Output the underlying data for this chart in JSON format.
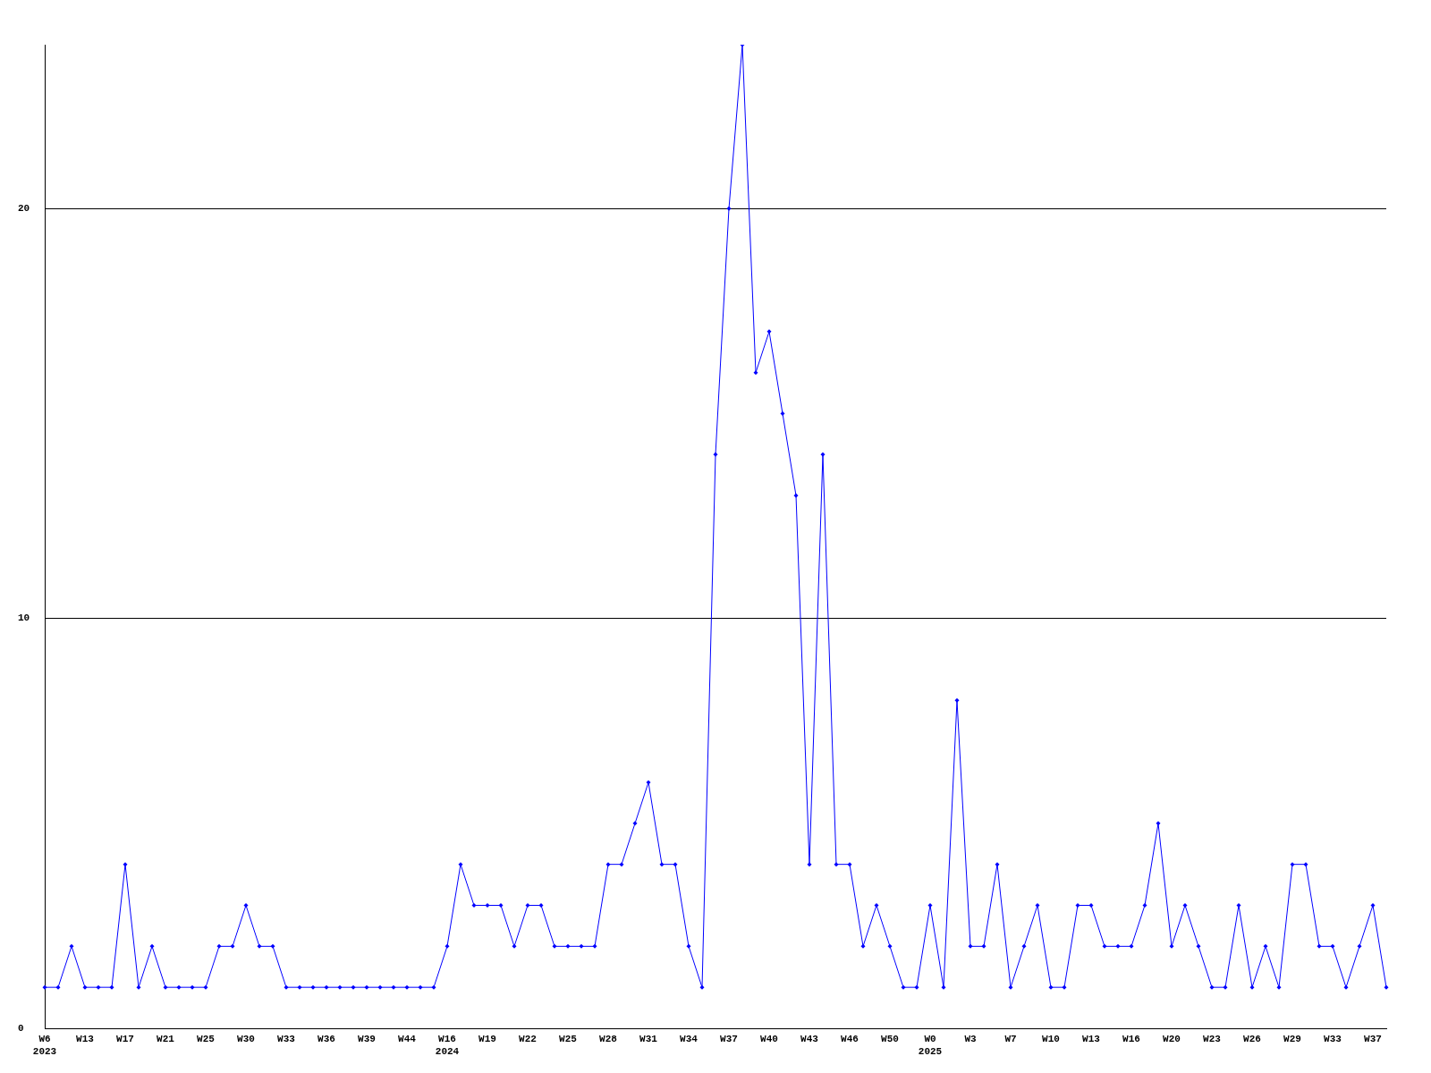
{
  "chart_data": {
    "type": "line",
    "categories": [
      "W6\n2023",
      null,
      null,
      "W13",
      null,
      null,
      "W17",
      null,
      null,
      "W21",
      null,
      null,
      "W25",
      null,
      null,
      "W30",
      null,
      null,
      "W33",
      null,
      null,
      "W36",
      null,
      null,
      "W39",
      null,
      null,
      "W44",
      null,
      null,
      "W16\n2024",
      null,
      null,
      "W19",
      null,
      null,
      "W22",
      null,
      null,
      "W25",
      null,
      null,
      "W28",
      null,
      null,
      "W31",
      null,
      null,
      "W34",
      null,
      null,
      "W37",
      null,
      null,
      "W40",
      null,
      null,
      "W43",
      null,
      null,
      "W46",
      null,
      null,
      "W50",
      null,
      null,
      "W0\n2025",
      null,
      null,
      "W3",
      null,
      null,
      "W7",
      null,
      null,
      "W10",
      null,
      null,
      "W13",
      null,
      null,
      "W16",
      null,
      null,
      "W20",
      null,
      null,
      "W23",
      null,
      null,
      "W26",
      null,
      null,
      "W29",
      null,
      null,
      "W33",
      null,
      null,
      "W37",
      null
    ],
    "series": [
      {
        "color": "#0000ff",
        "values": [
          1,
          1,
          2,
          1,
          1,
          1,
          4,
          1,
          2,
          1,
          1,
          1,
          1,
          2,
          2,
          3,
          2,
          2,
          1,
          1,
          1,
          1,
          1,
          1,
          1,
          1,
          1,
          1,
          1,
          1,
          2,
          4,
          3,
          3,
          3,
          2,
          3,
          3,
          2,
          2,
          2,
          2,
          4,
          4,
          5,
          6,
          4,
          4,
          2,
          1,
          14,
          20,
          24,
          16,
          17,
          15,
          13,
          4,
          14,
          4,
          4,
          2,
          3,
          2,
          1,
          1,
          3,
          1,
          8,
          2,
          2,
          4,
          1,
          2,
          3,
          1,
          1,
          3,
          3,
          2,
          2,
          2,
          3,
          5,
          2,
          3,
          2,
          1,
          1,
          3,
          1,
          2,
          1,
          4,
          4,
          2,
          2,
          1,
          2,
          3,
          1
        ]
      }
    ],
    "ylim": [
      0,
      24
    ],
    "yticks": [
      0,
      10,
      20
    ],
    "grid": "y",
    "legend": false,
    "marker": "diamond",
    "line_style": "solid"
  }
}
